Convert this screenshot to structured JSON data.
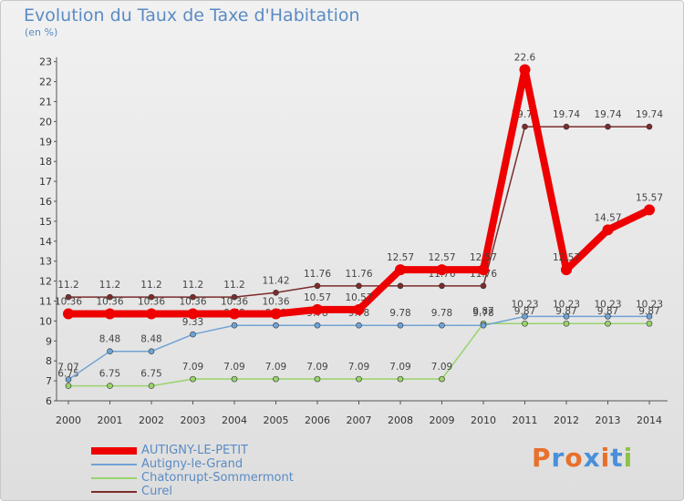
{
  "title": "Evolution du Taux de Taxe d'Habitation",
  "subtitle": "(en %)",
  "logo": {
    "text": "Proxiti",
    "letters": [
      "P",
      "r",
      "o",
      "x",
      "i",
      "t",
      "i"
    ],
    "colors": [
      "#e8702a",
      "#4a90d9",
      "#e8702a",
      "#4a90d9",
      "#e8702a",
      "#4a90d9",
      "#8bc34a"
    ]
  },
  "chart_data": {
    "type": "line",
    "x": [
      2000,
      2001,
      2002,
      2003,
      2004,
      2005,
      2006,
      2007,
      2008,
      2009,
      2010,
      2011,
      2012,
      2013,
      2014
    ],
    "ylim": [
      6,
      23
    ],
    "yticks": [
      6,
      7,
      8,
      9,
      10,
      11,
      12,
      13,
      14,
      15,
      16,
      17,
      18,
      19,
      20,
      21,
      22,
      23
    ],
    "grid": false,
    "legend_position": "bottom-left",
    "series": [
      {
        "name": "Curel",
        "color": "#7b2c2c",
        "values": [
          11.2,
          11.2,
          11.2,
          11.2,
          11.2,
          11.42,
          11.76,
          11.76,
          11.76,
          11.76,
          11.76,
          19.74,
          19.74,
          19.74,
          19.74
        ],
        "labels": [
          "11.2",
          "11.2",
          "11.2",
          "11.2",
          "11.2",
          "11.42",
          "11.76",
          "11.76",
          "",
          "11.76",
          "11.76",
          "19.74",
          "19.74",
          "19.74",
          "19.74"
        ]
      },
      {
        "name": "Chatonrupt-Sommermont",
        "color": "#99d36b",
        "values": [
          6.75,
          6.75,
          6.75,
          7.09,
          7.09,
          7.09,
          7.09,
          7.09,
          7.09,
          7.09,
          9.87,
          9.87,
          9.87,
          9.87,
          9.87
        ],
        "labels": [
          "6.75",
          "6.75",
          "6.75",
          "7.09",
          "7.09",
          "7.09",
          "7.09",
          "7.09",
          "7.09",
          "7.09",
          "9.87",
          "9.87",
          "9.87",
          "9.87",
          "9.87"
        ]
      },
      {
        "name": "Autigny-le-Grand",
        "color": "#6fa3d6",
        "values": [
          7.07,
          8.48,
          8.48,
          9.33,
          9.78,
          9.78,
          9.78,
          9.78,
          9.78,
          9.78,
          9.78,
          10.23,
          10.23,
          10.23,
          10.23
        ],
        "labels": [
          "7.07",
          "8.48",
          "8.48",
          "9.33",
          "9.78",
          "9.78",
          "9.78",
          "9.78",
          "9.78",
          "9.78",
          "9.78",
          "10.23",
          "10.23",
          "10.23",
          "10.23"
        ]
      },
      {
        "name": "AUTIGNY-LE-PETIT",
        "color": "#ee0000",
        "values": [
          10.36,
          10.36,
          10.36,
          10.36,
          10.36,
          10.36,
          10.57,
          10.57,
          12.57,
          12.57,
          12.57,
          22.6,
          12.57,
          14.57,
          15.57
        ],
        "labels": [
          "10.36",
          "10.36",
          "10.36",
          "10.36",
          "10.36",
          "10.36",
          "10.57",
          "10.57",
          "12.57",
          "12.57",
          "12.57",
          "22.6",
          "12.57",
          "14.57",
          "15.57"
        ]
      }
    ]
  },
  "legend": [
    {
      "label": "AUTIGNY-LE-PETIT",
      "color": "#ee0000"
    },
    {
      "label": "Autigny-le-Grand",
      "color": "#6fa3d6"
    },
    {
      "label": "Chatonrupt-Sommermont",
      "color": "#99d36b"
    },
    {
      "label": "Curel",
      "color": "#7b2c2c"
    }
  ]
}
